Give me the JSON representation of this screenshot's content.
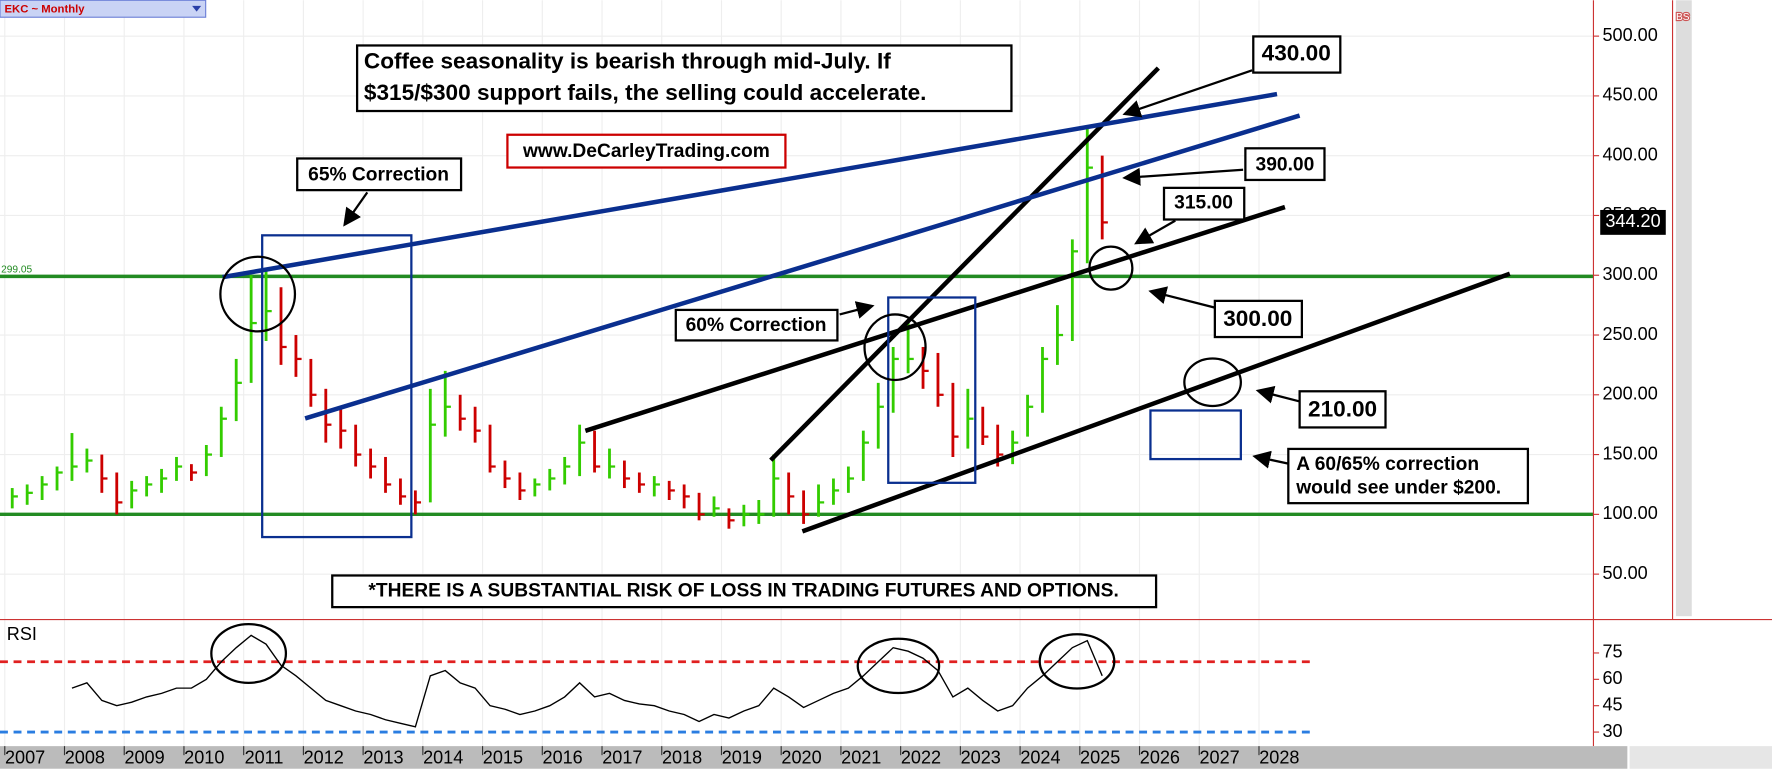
{
  "chart_data": {
    "type": "ohlc",
    "title": "EKC ~ Monthly",
    "x": [
      2007.125,
      2007.375,
      2007.625,
      2007.875,
      2008.125,
      2008.375,
      2008.625,
      2008.875,
      2009.125,
      2009.375,
      2009.625,
      2009.875,
      2010.125,
      2010.375,
      2010.625,
      2010.875,
      2011.125,
      2011.375,
      2011.625,
      2011.875,
      2012.125,
      2012.375,
      2012.625,
      2012.875,
      2013.125,
      2013.375,
      2013.625,
      2013.875,
      2014.125,
      2014.375,
      2014.625,
      2014.875,
      2015.125,
      2015.375,
      2015.625,
      2015.875,
      2016.125,
      2016.375,
      2016.625,
      2016.875,
      2017.125,
      2017.375,
      2017.625,
      2017.875,
      2018.125,
      2018.375,
      2018.625,
      2018.875,
      2019.125,
      2019.375,
      2019.625,
      2019.875,
      2020.125,
      2020.375,
      2020.625,
      2020.875,
      2021.125,
      2021.375,
      2021.625,
      2021.875,
      2022.125,
      2022.375,
      2022.625,
      2022.875,
      2023.125,
      2023.375,
      2023.625,
      2023.875,
      2024.125,
      2024.375,
      2024.625,
      2024.875,
      2025.125,
      2025.375
    ],
    "high": [
      122,
      125,
      132,
      140,
      168,
      155,
      150,
      135,
      128,
      132,
      138,
      148,
      142,
      158,
      190,
      230,
      300,
      305,
      290,
      250,
      230,
      205,
      190,
      175,
      155,
      148,
      130,
      120,
      205,
      220,
      200,
      190,
      175,
      145,
      135,
      130,
      138,
      148,
      175,
      170,
      155,
      145,
      135,
      132,
      128,
      125,
      118,
      115,
      105,
      108,
      112,
      150,
      135,
      120,
      125,
      130,
      140,
      170,
      210,
      240,
      260,
      240,
      235,
      210,
      205,
      190,
      175,
      170,
      200,
      240,
      275,
      330,
      425,
      400
    ],
    "low": [
      105,
      108,
      112,
      120,
      128,
      135,
      118,
      100,
      105,
      115,
      118,
      128,
      128,
      132,
      148,
      178,
      210,
      245,
      225,
      215,
      190,
      160,
      155,
      140,
      130,
      118,
      108,
      100,
      110,
      165,
      170,
      160,
      135,
      122,
      112,
      115,
      120,
      125,
      132,
      135,
      130,
      122,
      118,
      115,
      112,
      105,
      95,
      98,
      88,
      90,
      92,
      98,
      100,
      92,
      98,
      108,
      118,
      128,
      155,
      185,
      218,
      205,
      190,
      148,
      155,
      158,
      140,
      142,
      165,
      185,
      225,
      245,
      310,
      330
    ],
    "close": [
      115,
      118,
      125,
      135,
      140,
      145,
      130,
      110,
      120,
      125,
      130,
      140,
      135,
      150,
      180,
      210,
      260,
      270,
      240,
      230,
      200,
      175,
      170,
      150,
      140,
      125,
      115,
      110,
      175,
      190,
      180,
      170,
      140,
      130,
      120,
      125,
      130,
      140,
      160,
      140,
      140,
      130,
      125,
      125,
      120,
      115,
      100,
      105,
      95,
      100,
      100,
      130,
      115,
      100,
      110,
      120,
      130,
      160,
      190,
      230,
      230,
      220,
      200,
      165,
      180,
      165,
      150,
      160,
      190,
      230,
      250,
      320,
      390,
      344.2
    ],
    "up_color": "#33cc00",
    "down_color": "#cc0000",
    "xlim": [
      2006.92,
      2033.6
    ],
    "xticks": [
      2007,
      2008,
      2009,
      2010,
      2011,
      2012,
      2013,
      2014,
      2015,
      2016,
      2017,
      2018,
      2019,
      2020,
      2021,
      2022,
      2023,
      2024,
      2025,
      2026,
      2027,
      2028
    ],
    "ylim": [
      12,
      530
    ],
    "yticks": [
      {
        "value": 50,
        "label": "50.00"
      },
      {
        "value": 100,
        "label": "100.00"
      },
      {
        "value": 150,
        "label": "150.00"
      },
      {
        "value": 200,
        "label": "200.00"
      },
      {
        "value": 250,
        "label": "250.00"
      },
      {
        "value": 300,
        "label": "300.00"
      },
      {
        "value": 350,
        "label": "350.00"
      },
      {
        "value": 400,
        "label": "400.00"
      },
      {
        "value": 450,
        "label": "450.00"
      },
      {
        "value": 500,
        "label": "500.00"
      }
    ],
    "grid": true,
    "levels": [
      {
        "value": 299.05,
        "label": "299.05"
      },
      {
        "value": 100
      }
    ],
    "last_price": {
      "value": 344.2,
      "label": "344.20"
    },
    "rsi": {
      "label": "RSI",
      "color": "#000000",
      "values": [
        null,
        null,
        null,
        null,
        55,
        58,
        48,
        45,
        47,
        50,
        52,
        55,
        55,
        60,
        70,
        78,
        85,
        80,
        68,
        62,
        55,
        48,
        45,
        42,
        40,
        37,
        35,
        33,
        62,
        65,
        58,
        55,
        45,
        43,
        40,
        42,
        45,
        50,
        58,
        50,
        52,
        48,
        46,
        45,
        42,
        40,
        36,
        40,
        38,
        42,
        45,
        55,
        50,
        44,
        48,
        52,
        55,
        62,
        70,
        78,
        76,
        72,
        65,
        50,
        55,
        48,
        42,
        45,
        55,
        62,
        70,
        78,
        82,
        62
      ],
      "ylim": [
        22,
        94
      ],
      "yticks": [
        30,
        45,
        60,
        75
      ],
      "reference_lines": [
        {
          "value": 70,
          "color": "#e02020"
        },
        {
          "value": 30,
          "color": "#2a7de1"
        }
      ]
    },
    "annotations": {
      "headline": [
        "Coffee seasonality is bearish through mid-July. If",
        "$315/$300 support fails, the selling could accelerate."
      ],
      "website": "www.DeCarleyTrading.com",
      "correction_65": "65% Correction",
      "correction_60": "60% Correction",
      "level_430": "430.00",
      "level_390": "390.00",
      "level_315": "315.00",
      "level_300": "300.00",
      "level_210": "210.00",
      "projection": [
        "A 60/65% correction",
        "would see under $200."
      ],
      "disclaimer": "*THERE IS A SUBSTANTIAL RISK OF LOSS IN TRADING FUTURES AND OPTIONS.",
      "corner": "BS"
    }
  }
}
